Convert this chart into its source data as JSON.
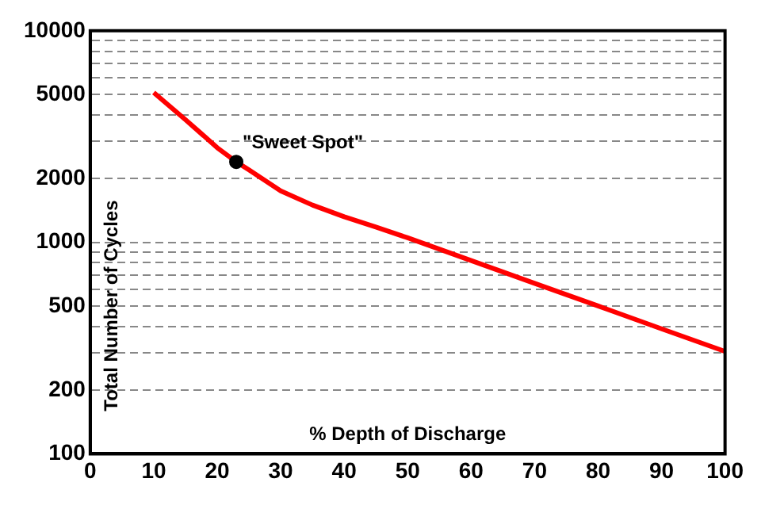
{
  "chart_data": {
    "type": "line",
    "xlabel": "% Depth of Discharge",
    "ylabel": "Total Number of Cycles",
    "log": "y",
    "series": [
      {
        "color": "#ff0000",
        "x": [
          10,
          15,
          20,
          23,
          25,
          30,
          35,
          40,
          45,
          50,
          60,
          70,
          80,
          90,
          100
        ],
        "values": [
          5100,
          3800,
          2800,
          2400,
          2200,
          1750,
          1500,
          1320,
          1180,
          1050,
          820,
          640,
          500,
          390,
          305
        ]
      },
      {
        "type": "scatter",
        "marker": "circle",
        "color": "#000000",
        "x": [
          23
        ],
        "values": [
          2400
        ]
      }
    ],
    "annotations": [
      {
        "text": "\"Sweet Spot\"",
        "x": 23,
        "y": 2400
      }
    ],
    "xlim": [
      0,
      100
    ],
    "xticks": [
      0,
      10,
      20,
      30,
      40,
      50,
      60,
      70,
      80,
      90,
      100
    ],
    "ylim": [
      100,
      10000
    ],
    "yticks": [
      100,
      200,
      {
        "value": 300,
        "label": null
      },
      {
        "value": 400,
        "label": null
      },
      500,
      {
        "value": 600,
        "label": null
      },
      {
        "value": 700,
        "label": null
      },
      {
        "value": 800,
        "label": null
      },
      {
        "value": 900,
        "label": null
      },
      1000,
      2000,
      {
        "value": 3000,
        "label": null
      },
      {
        "value": 4000,
        "label": null
      },
      5000,
      {
        "value": 6000,
        "label": null
      },
      {
        "value": 7000,
        "label": null
      },
      {
        "value": 8000,
        "label": null
      },
      {
        "value": 9000,
        "label": null
      },
      10000
    ],
    "grid": "y",
    "legend": false,
    "marker": "none",
    "line_style": "solid"
  }
}
